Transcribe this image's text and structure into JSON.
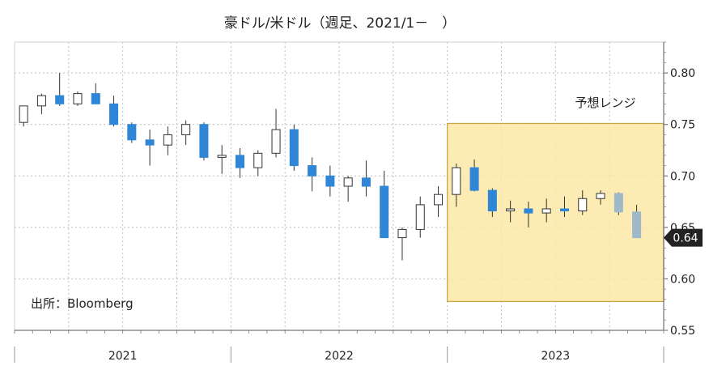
{
  "chart_data": {
    "type": "candlestick",
    "title": "豪ドル/米ドル（週足、2021/1－　）",
    "source": "出所：Bloomberg",
    "range_label": "予想レンジ",
    "last_value_label": "0.64",
    "last_value": 0.64,
    "ylim": [
      0.55,
      0.83
    ],
    "y_ticks": [
      0.55,
      0.6,
      0.65,
      0.7,
      0.75,
      0.8
    ],
    "y_tick_labels": [
      "0.55",
      "0.60",
      "0.65",
      "0.70",
      "0.75",
      "0.80"
    ],
    "x_labels": [
      "2021",
      "2022",
      "2023"
    ],
    "forecast_range": {
      "low": 0.578,
      "high": 0.751,
      "start": "2023-01",
      "end": "2023-12"
    },
    "grid": true,
    "colors": {
      "up": "#ffffff",
      "down": "#2f86d6",
      "forecast": "#9fb9c9",
      "range_fill": "#fbe8a6",
      "range_border": "#c9a441"
    },
    "series": [
      {
        "x": [
          "2021-01",
          "2021-02",
          "2021-03",
          "2021-04",
          "2021-05",
          "2021-06",
          "2021-07",
          "2021-08",
          "2021-09",
          "2021-10",
          "2021-11",
          "2021-12",
          "2022-01",
          "2022-02",
          "2022-03",
          "2022-04",
          "2022-05",
          "2022-06",
          "2022-07",
          "2022-08",
          "2022-09",
          "2022-10",
          "2022-11",
          "2022-12",
          "2023-01",
          "2023-02",
          "2023-03",
          "2023-04",
          "2023-05",
          "2023-06",
          "2023-07",
          "2023-08",
          "2023-09",
          "2023-10",
          "2023-11"
        ],
        "open": [
          0.752,
          0.768,
          0.778,
          0.77,
          0.78,
          0.77,
          0.75,
          0.735,
          0.73,
          0.74,
          0.75,
          0.718,
          0.72,
          0.708,
          0.722,
          0.745,
          0.71,
          0.7,
          0.69,
          0.698,
          0.69,
          0.64,
          0.648,
          0.672,
          0.682,
          0.708,
          0.686,
          0.666,
          0.668,
          0.664,
          0.668,
          0.666,
          0.678,
          0.683,
          0.665
        ],
        "high": [
          0.768,
          0.78,
          0.8,
          0.782,
          0.79,
          0.778,
          0.752,
          0.745,
          0.748,
          0.754,
          0.752,
          0.73,
          0.727,
          0.725,
          0.765,
          0.75,
          0.718,
          0.71,
          0.7,
          0.715,
          0.705,
          0.65,
          0.68,
          0.69,
          0.712,
          0.716,
          0.688,
          0.676,
          0.675,
          0.678,
          0.68,
          0.686,
          0.686,
          0.684,
          0.672
        ],
        "low": [
          0.748,
          0.76,
          0.768,
          0.768,
          0.77,
          0.748,
          0.732,
          0.71,
          0.72,
          0.73,
          0.715,
          0.702,
          0.698,
          0.7,
          0.718,
          0.705,
          0.685,
          0.68,
          0.675,
          0.68,
          0.64,
          0.618,
          0.64,
          0.66,
          0.67,
          0.685,
          0.66,
          0.655,
          0.65,
          0.655,
          0.66,
          0.662,
          0.672,
          0.662,
          0.64
        ],
        "close": [
          0.768,
          0.778,
          0.77,
          0.78,
          0.77,
          0.75,
          0.735,
          0.73,
          0.74,
          0.75,
          0.718,
          0.72,
          0.708,
          0.722,
          0.745,
          0.71,
          0.7,
          0.69,
          0.698,
          0.69,
          0.64,
          0.648,
          0.672,
          0.682,
          0.708,
          0.686,
          0.666,
          0.668,
          0.664,
          0.668,
          0.666,
          0.678,
          0.683,
          0.665,
          0.64
        ]
      }
    ]
  }
}
